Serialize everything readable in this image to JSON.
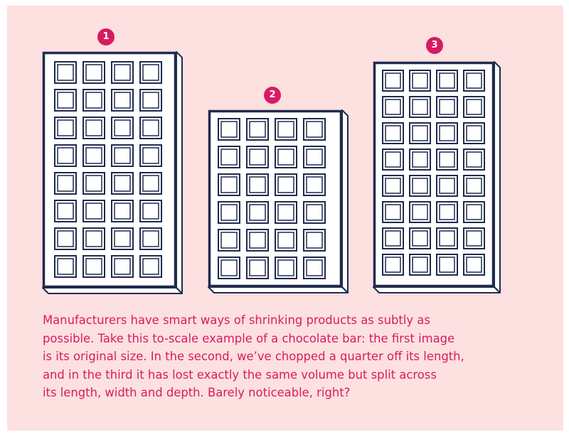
{
  "colors": {
    "background": "#fde0e0",
    "outline": "#1f2a4d",
    "accent": "#d81b60"
  },
  "bars": [
    {
      "label": "1",
      "cols": 4,
      "rows": 8
    },
    {
      "label": "2",
      "cols": 4,
      "rows": 6
    },
    {
      "label": "3",
      "cols": 4,
      "rows": 8
    }
  ],
  "caption_lines": [
    "Manufacturers have smart ways of shrinking products as subtly as",
    "possible. Take this to-scale example of a chocolate bar: the first image",
    "is its original size. In the second, we’ve chopped a quarter off its length,",
    "and in the third it has lost exactly the same volume but split across",
    "its length, width and depth. Barely noticeable, right?"
  ]
}
